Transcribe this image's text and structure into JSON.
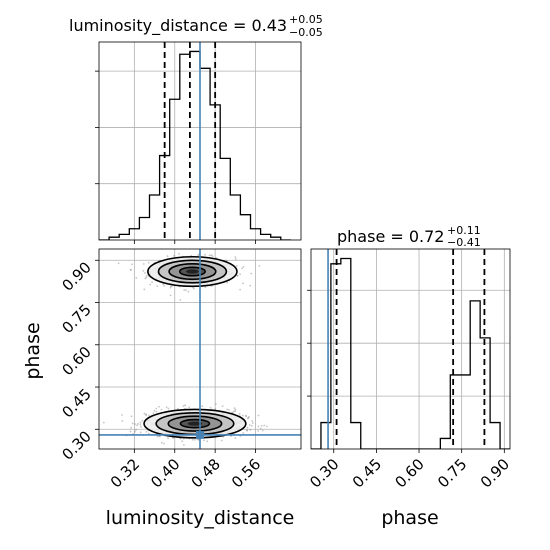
{
  "chart_data": {
    "type": "corner",
    "parameters": [
      "luminosity_distance",
      "phase"
    ],
    "truths": {
      "luminosity_distance": 0.45,
      "phase": 0.28
    },
    "panels": [
      {
        "id": "luminosity_distance_hist",
        "type": "histogram",
        "title_param": "luminosity_distance",
        "title_eq": " = 0.43",
        "title_up": "+0.05",
        "title_down": "−0.05",
        "quantiles": [
          0.38,
          0.43,
          0.48
        ],
        "xlim": [
          0.25,
          0.65
        ],
        "bin_edges": [
          0.25,
          0.27,
          0.29,
          0.31,
          0.33,
          0.35,
          0.37,
          0.39,
          0.41,
          0.43,
          0.45,
          0.47,
          0.49,
          0.51,
          0.53,
          0.55,
          0.57,
          0.59,
          0.61,
          0.63
        ],
        "counts": [
          0,
          1,
          2,
          4,
          8,
          16,
          30,
          50,
          66,
          67,
          61,
          48,
          29,
          16,
          9,
          4,
          2,
          1,
          0
        ]
      },
      {
        "id": "phase_hist",
        "type": "histogram",
        "title_param": "phase",
        "title_eq": " = 0.72",
        "title_up": "+0.11",
        "title_down": "−0.41",
        "quantiles": [
          0.31,
          0.72,
          0.83
        ],
        "xlim": [
          0.22,
          0.92
        ],
        "bin_edges": [
          0.22,
          0.255,
          0.29,
          0.325,
          0.36,
          0.395,
          0.43,
          0.465,
          0.5,
          0.535,
          0.57,
          0.605,
          0.64,
          0.675,
          0.71,
          0.745,
          0.78,
          0.815,
          0.85,
          0.885,
          0.92
        ],
        "counts": [
          0,
          5,
          35,
          36,
          5,
          0,
          0,
          0,
          0,
          0,
          0,
          0,
          0,
          2,
          14,
          14,
          28,
          21,
          5,
          0
        ]
      },
      {
        "id": "joint_2d",
        "type": "density2d",
        "xlim": [
          0.25,
          0.65
        ],
        "ylim": [
          0.23,
          0.94
        ],
        "clusters": [
          {
            "cx": 0.435,
            "cy": 0.86,
            "sx": 0.042,
            "sy": 0.025,
            "n": 700
          },
          {
            "cx": 0.44,
            "cy": 0.32,
            "sx": 0.048,
            "sy": 0.024,
            "n": 850
          }
        ]
      }
    ],
    "xticks": {
      "luminosity_distance": [
        "0.32",
        "0.40",
        "0.48",
        "0.56"
      ],
      "phase": [
        "0.30",
        "0.45",
        "0.60",
        "0.75",
        "0.90"
      ]
    },
    "yticks": {
      "phase": [
        "0.30",
        "0.45",
        "0.60",
        "0.75",
        "0.90"
      ]
    },
    "xlabel_left": "luminosity_distance",
    "xlabel_right": "phase",
    "ylabel": "phase",
    "grid": true,
    "colors": {
      "truth": "#4682b4",
      "hist": "#000000",
      "grid": "#b0b0b0",
      "points": "#7f7f7f"
    }
  }
}
